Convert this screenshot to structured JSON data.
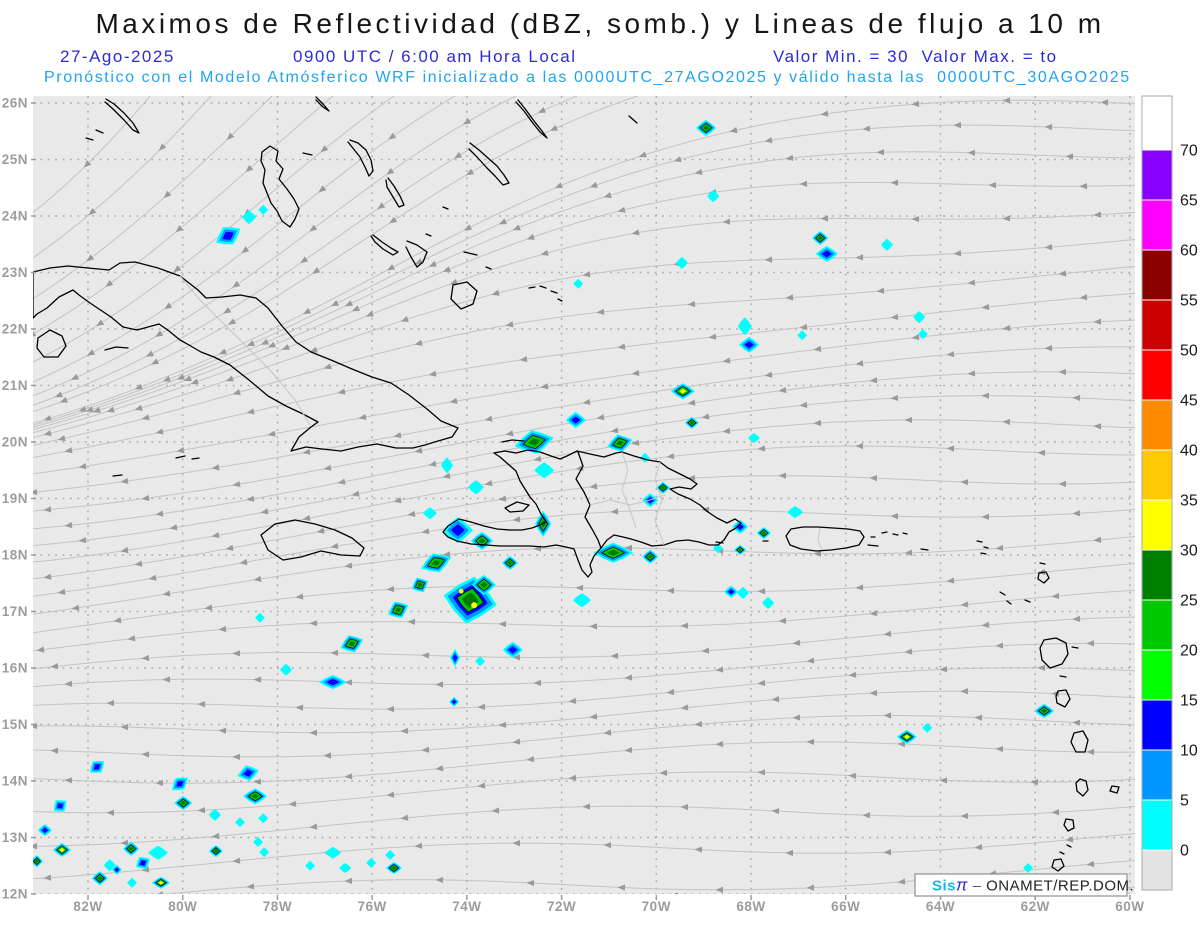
{
  "header": {
    "title": "Maximos de Reflectividad (dBZ, somb.) y Lineas de flujo a 10 m",
    "date": "27-Ago-2025",
    "time": "0900 UTC / 6:00 am Hora Local",
    "min_max": "Valor Min. = 30  Valor Max. = to",
    "forecast": "Pronóstico con el Modelo Atmósferico WRF inicializado a las 0000UTC_27AGO2025 y válido hasta las  0000UTC_30AGO2025"
  },
  "axes": {
    "lat_labels": [
      "26N",
      "25N",
      "24N",
      "23N",
      "22N",
      "21N",
      "20N",
      "19N",
      "18N",
      "17N",
      "16N",
      "15N",
      "14N",
      "13N",
      "12N"
    ],
    "lon_labels": [
      "82W",
      "80W",
      "78W",
      "76W",
      "74W",
      "72W",
      "70W",
      "68W",
      "66W",
      "64W",
      "62W",
      "60W"
    ]
  },
  "colorbar": {
    "ticks": [
      "0",
      "5",
      "10",
      "15",
      "20",
      "25",
      "30",
      "35",
      "40",
      "45",
      "50",
      "55",
      "60",
      "65",
      "70"
    ],
    "segments_bottom_to_top": [
      "#E3E3E3",
      "#00FFFF",
      "#0096FF",
      "#0000FF",
      "#00FF00",
      "#00C800",
      "#008000",
      "#FFFF00",
      "#FFC800",
      "#FF8C00",
      "#FF0000",
      "#CD0000",
      "#8B0000",
      "#FF00FF",
      "#8800FF",
      "#FFFFFF"
    ],
    "units": "dBZ"
  },
  "branding": {
    "product": "Sis",
    "pi": "π",
    "dash": "–",
    "org": "ONAMET/REP.DOM."
  },
  "colors": {
    "map_bg": "#E9E9E9",
    "stream_line": "#C3C3C3",
    "stream_arrow": "#9A9A9A",
    "grid_dots": "#ACACAC",
    "coast": "#000000",
    "axis_text": "#9C9C9C",
    "header_blue": "#2B2BD8",
    "header_cyan": "#1FA4EE"
  },
  "chart_data": {
    "type": "map",
    "title": "Maximos de Reflectividad (dBZ, somb.) y Lineas de flujo a 10 m",
    "bounds": {
      "lon": [
        -83.2,
        -59.9
      ],
      "lat": [
        12,
        26
      ]
    },
    "flow": "easterly trade-wind streamlines, arrows point westward; anticyclonic turning (NE to SW) in northwest quadrant",
    "reflectivity_scale_dbz": [
      0,
      5,
      10,
      15,
      20,
      25,
      30,
      35,
      40,
      45,
      50,
      55,
      60,
      65,
      70
    ],
    "level_colors": {
      "c": [
        "#00FFFF"
      ],
      "b": [
        "#00FFFF",
        "#0096FF",
        "#0000FF"
      ],
      "g": [
        "#00FFFF",
        "#0096FF",
        "#00C800",
        "#007800"
      ],
      "y": [
        "#00FFFF",
        "#0096FF",
        "#00C800",
        "#FFFF00"
      ],
      "gy": [
        "#00FFFF",
        "#0096FF",
        "#0000FF",
        "#00C800",
        "#007800"
      ]
    },
    "level_dbz": {
      "c": "0-5",
      "b": "10-15",
      "g": "20-30",
      "y": "30-35",
      "gy": "20-35 with 30+ cores"
    },
    "cells": [
      [
        -79.04,
        23.65,
        "b",
        14,
        10,
        -30
      ],
      [
        -78.6,
        23.98,
        "c",
        7,
        7,
        0
      ],
      [
        -78.3,
        24.11,
        "c",
        5,
        5,
        0
      ],
      [
        -68.95,
        25.56,
        "g",
        10,
        8,
        0
      ],
      [
        -68.8,
        24.35,
        "c",
        6,
        6,
        0
      ],
      [
        -66.54,
        23.61,
        "g",
        8,
        7,
        0
      ],
      [
        -66.4,
        23.33,
        "b",
        11,
        8,
        0
      ],
      [
        -65.13,
        23.49,
        "c",
        6,
        6,
        0
      ],
      [
        -71.65,
        22.8,
        "c",
        5,
        5,
        0
      ],
      [
        -69.46,
        23.17,
        "c",
        6,
        6,
        0
      ],
      [
        -68.13,
        22.05,
        "c",
        7,
        9,
        0
      ],
      [
        -68.04,
        21.72,
        "b",
        10,
        8,
        0
      ],
      [
        -64.45,
        22.21,
        "c",
        6,
        6,
        0
      ],
      [
        -64.37,
        21.91,
        "c",
        5,
        5,
        0
      ],
      [
        -66.92,
        21.89,
        "c",
        5,
        5,
        0
      ],
      [
        -69.44,
        20.9,
        "y",
        12,
        8,
        0
      ],
      [
        -71.7,
        20.39,
        "b",
        10,
        8,
        0
      ],
      [
        -72.58,
        20.0,
        "g",
        20,
        12,
        -12
      ],
      [
        -70.77,
        19.98,
        "g",
        13,
        9,
        -15
      ],
      [
        -72.37,
        19.5,
        "c",
        10,
        8,
        0
      ],
      [
        -73.81,
        19.2,
        "c",
        8,
        7,
        0
      ],
      [
        -74.78,
        18.74,
        "c",
        7,
        6,
        0
      ],
      [
        -74.19,
        18.44,
        "b",
        15,
        13,
        0
      ],
      [
        -73.68,
        18.25,
        "g",
        11,
        9,
        0
      ],
      [
        -74.65,
        17.86,
        "g",
        16,
        10,
        -20
      ],
      [
        -73.93,
        17.2,
        "gy",
        27,
        24,
        10
      ],
      [
        -73.64,
        17.47,
        "g",
        12,
        10,
        0
      ],
      [
        -72.39,
        18.55,
        "g",
        8,
        13,
        0
      ],
      [
        -73.09,
        17.86,
        "g",
        8,
        7,
        0
      ],
      [
        -70.91,
        18.04,
        "g",
        20,
        10,
        0
      ],
      [
        -70.13,
        17.97,
        "g",
        8,
        7,
        0
      ],
      [
        -71.57,
        17.2,
        "c",
        9,
        7,
        0
      ],
      [
        -69.86,
        19.19,
        "g",
        7,
        6,
        0
      ],
      [
        -70.13,
        18.97,
        "b",
        8,
        7,
        0
      ],
      [
        -68.42,
        17.35,
        "b",
        7,
        6,
        0
      ],
      [
        -68.17,
        17.33,
        "c",
        6,
        6,
        0
      ],
      [
        -67.64,
        17.15,
        "c",
        6,
        6,
        0
      ],
      [
        -68.23,
        18.5,
        "b",
        8,
        7,
        0
      ],
      [
        -68.7,
        18.12,
        "c",
        5,
        5,
        0
      ],
      [
        -67.73,
        18.39,
        "g",
        7,
        6,
        0
      ],
      [
        -67.07,
        18.76,
        "c",
        8,
        6,
        0
      ],
      [
        -64.71,
        14.78,
        "y",
        10,
        7,
        0
      ],
      [
        -64.28,
        14.94,
        "c",
        5,
        5,
        0
      ],
      [
        -61.81,
        15.24,
        "g",
        10,
        7,
        0
      ],
      [
        -76.43,
        16.43,
        "g",
        12,
        9,
        -20
      ],
      [
        -75.45,
        17.03,
        "g",
        11,
        9,
        -25
      ],
      [
        -74.99,
        17.47,
        "g",
        9,
        8,
        -25
      ],
      [
        -76.83,
        15.75,
        "b",
        14,
        7,
        0
      ],
      [
        -77.82,
        15.97,
        "c",
        6,
        6,
        0
      ],
      [
        -78.37,
        16.89,
        "c",
        5,
        5,
        0
      ],
      [
        -74.25,
        16.18,
        "b",
        5,
        9,
        0
      ],
      [
        -73.72,
        16.12,
        "c",
        5,
        5,
        0
      ],
      [
        -73.03,
        16.32,
        "b",
        10,
        8,
        0
      ],
      [
        -81.81,
        14.25,
        "b",
        9,
        7,
        -38
      ],
      [
        -80.06,
        13.95,
        "b",
        10,
        7,
        -38
      ],
      [
        -79.99,
        13.61,
        "g",
        9,
        7,
        0
      ],
      [
        -78.62,
        14.14,
        "b",
        11,
        8,
        -15
      ],
      [
        -78.47,
        13.73,
        "g",
        12,
        8,
        0
      ],
      [
        -79.32,
        13.4,
        "c",
        6,
        6,
        0
      ],
      [
        -78.79,
        13.27,
        "c",
        5,
        5,
        0
      ],
      [
        -78.3,
        13.34,
        "c",
        5,
        5,
        0
      ],
      [
        -78.41,
        12.92,
        "c",
        5,
        5,
        0
      ],
      [
        -82.59,
        13.56,
        "b",
        8,
        7,
        -38
      ],
      [
        -82.91,
        13.13,
        "b",
        7,
        6,
        0
      ],
      [
        -82.55,
        12.78,
        "y",
        9,
        7,
        0
      ],
      [
        -83.08,
        12.58,
        "g",
        6,
        6,
        0
      ],
      [
        -81.75,
        12.28,
        "g",
        8,
        7,
        0
      ],
      [
        -81.54,
        12.51,
        "c",
        6,
        6,
        0
      ],
      [
        -81.09,
        12.8,
        "g",
        8,
        7,
        0
      ],
      [
        -80.84,
        12.55,
        "b",
        8,
        7,
        -30
      ],
      [
        -80.52,
        12.73,
        "c",
        10,
        7,
        0
      ],
      [
        -80.46,
        12.2,
        "y",
        9,
        6,
        0
      ],
      [
        -81.07,
        12.2,
        "c",
        5,
        5,
        0
      ],
      [
        -81.39,
        12.43,
        "b",
        5,
        5,
        0
      ],
      [
        -79.3,
        12.76,
        "g",
        7,
        6,
        0
      ],
      [
        -78.28,
        12.74,
        "c",
        5,
        5,
        0
      ],
      [
        -76.83,
        12.73,
        "c",
        8,
        6,
        0
      ],
      [
        -77.31,
        12.5,
        "c",
        5,
        5,
        0
      ],
      [
        -76.57,
        12.46,
        "c",
        6,
        5,
        0
      ],
      [
        -75.54,
        12.46,
        "g",
        8,
        6,
        0
      ],
      [
        -75.62,
        12.69,
        "c",
        5,
        5,
        0
      ],
      [
        -76.02,
        12.55,
        "c",
        5,
        5,
        0
      ],
      [
        -74.27,
        15.4,
        "b",
        5,
        5,
        0
      ],
      [
        -74.42,
        19.59,
        "c",
        6,
        8,
        0
      ],
      [
        -70.24,
        19.72,
        "c",
        5,
        5,
        0
      ],
      [
        -69.25,
        20.34,
        "g",
        7,
        6,
        0
      ],
      [
        -67.94,
        20.07,
        "c",
        6,
        5,
        0
      ],
      [
        -68.23,
        18.09,
        "g",
        6,
        5,
        0
      ],
      [
        -62.15,
        12.46,
        "c",
        5,
        5,
        0
      ]
    ]
  }
}
